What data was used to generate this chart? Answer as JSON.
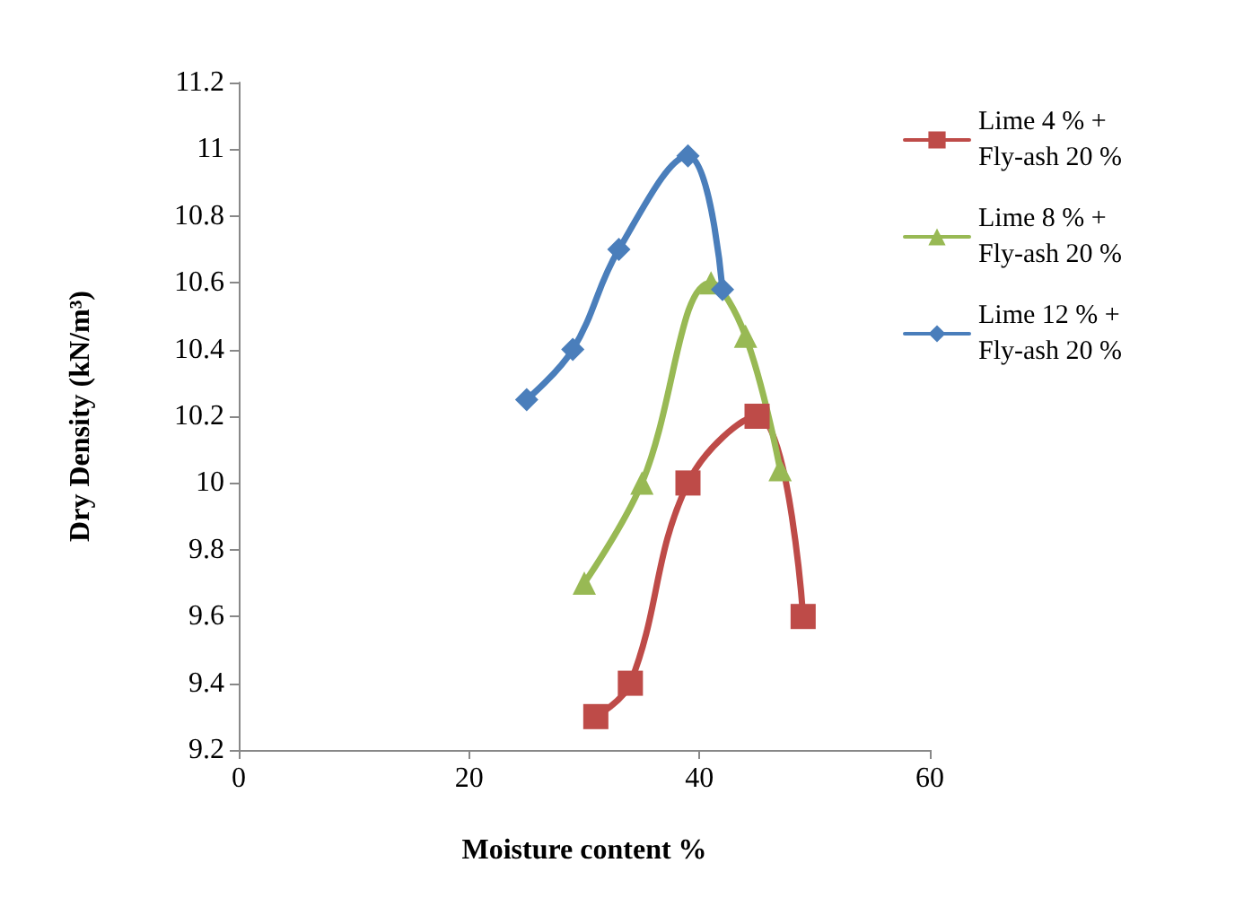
{
  "chart_data": {
    "type": "line",
    "xlabel": "Moisture content %",
    "ylabel": "Dry Density (kN/m³)",
    "xlim": [
      0,
      60
    ],
    "xticks": [
      0,
      20,
      40,
      60
    ],
    "ylim": [
      9.2,
      11.2
    ],
    "yticks": [
      9.2,
      9.4,
      9.6,
      9.8,
      10,
      10.2,
      10.4,
      10.6,
      10.8,
      11,
      11.2
    ],
    "grid": false,
    "legend": "top right",
    "line_style": "solid",
    "series": [
      {
        "name": "Lime 4 % + Fly-ash 20 %",
        "color": "#be4b48",
        "marker": "square",
        "x": [
          31,
          34,
          39,
          45,
          49
        ],
        "values": [
          9.3,
          9.4,
          10.0,
          10.2,
          9.6
        ]
      },
      {
        "name": "Lime 8 % + Fly-ash 20 %",
        "color": "#98b954",
        "marker": "triangle",
        "x": [
          30,
          35,
          41,
          44,
          47
        ],
        "values": [
          9.7,
          10.0,
          10.6,
          10.44,
          10.04
        ]
      },
      {
        "name": "Lime 12 % + Fly-ash 20 %",
        "color": "#4a7ebb",
        "marker": "diamond",
        "x": [
          25,
          29,
          33,
          39,
          42
        ],
        "values": [
          10.25,
          10.4,
          10.7,
          10.98,
          10.58
        ]
      }
    ]
  }
}
